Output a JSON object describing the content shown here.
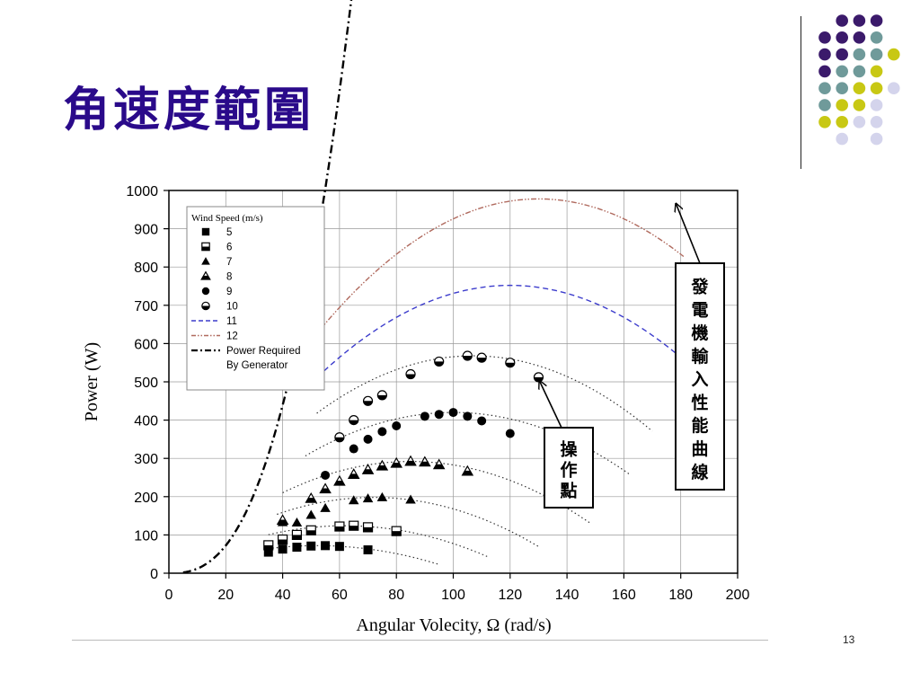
{
  "slide": {
    "title": "角速度範圍",
    "page_number": "13",
    "decor_colors": {
      "purple": "#3b1a6b",
      "teal": "#6f9a9a",
      "yellow": "#c8c814",
      "lavender": "#d4d4ec"
    }
  },
  "chart_data": {
    "type": "scatter",
    "xlabel": "Angular Volecity, Ω (rad/s)",
    "ylabel": "Power (W)",
    "xlim": [
      0,
      200
    ],
    "ylim": [
      0,
      1000
    ],
    "xticks": [
      0,
      20,
      40,
      60,
      80,
      100,
      120,
      140,
      160,
      180,
      200
    ],
    "yticks": [
      0,
      100,
      200,
      300,
      400,
      500,
      600,
      700,
      800,
      900,
      1000
    ],
    "grid": true,
    "legend_title": "Wind Speed (m/s)",
    "legend_position": "top-left",
    "series": [
      {
        "name": "5",
        "marker": "square-filled",
        "points": [
          [
            35,
            55
          ],
          [
            40,
            63
          ],
          [
            45,
            68
          ],
          [
            50,
            71
          ],
          [
            55,
            72
          ],
          [
            60,
            70
          ],
          [
            70,
            61
          ]
        ],
        "fit": {
          "peak_x": 52,
          "peak_y": 72,
          "x_start": 35,
          "x_end": 95
        }
      },
      {
        "name": "6",
        "marker": "square-half",
        "points": [
          [
            35,
            73
          ],
          [
            40,
            88
          ],
          [
            45,
            100
          ],
          [
            50,
            112
          ],
          [
            60,
            122
          ],
          [
            65,
            124
          ],
          [
            70,
            120
          ],
          [
            80,
            110
          ]
        ],
        "fit": {
          "peak_x": 62,
          "peak_y": 124,
          "x_start": 35,
          "x_end": 112
        }
      },
      {
        "name": "7",
        "marker": "triangle-filled",
        "points": [
          [
            40,
            133
          ],
          [
            45,
            132
          ],
          [
            50,
            152
          ],
          [
            55,
            170
          ],
          [
            65,
            190
          ],
          [
            70,
            195
          ],
          [
            75,
            198
          ],
          [
            85,
            192
          ]
        ],
        "fit": {
          "peak_x": 72,
          "peak_y": 198,
          "x_start": 38,
          "x_end": 130
        }
      },
      {
        "name": "8",
        "marker": "triangle-half",
        "points": [
          [
            40,
            138
          ],
          [
            50,
            195
          ],
          [
            55,
            220
          ],
          [
            60,
            240
          ],
          [
            65,
            258
          ],
          [
            70,
            270
          ],
          [
            75,
            280
          ],
          [
            80,
            287
          ],
          [
            85,
            292
          ],
          [
            90,
            290
          ],
          [
            95,
            283
          ],
          [
            105,
            266
          ]
        ],
        "fit": {
          "peak_x": 85,
          "peak_y": 292,
          "x_start": 40,
          "x_end": 148
        }
      },
      {
        "name": "9",
        "marker": "circle-filled",
        "points": [
          [
            55,
            256
          ],
          [
            65,
            325
          ],
          [
            70,
            350
          ],
          [
            75,
            370
          ],
          [
            80,
            385
          ],
          [
            90,
            410
          ],
          [
            95,
            415
          ],
          [
            100,
            420
          ],
          [
            105,
            410
          ],
          [
            110,
            398
          ],
          [
            120,
            365
          ]
        ],
        "fit": {
          "peak_x": 100,
          "peak_y": 420,
          "x_start": 48,
          "x_end": 162
        }
      },
      {
        "name": "10",
        "marker": "circle-half",
        "points": [
          [
            60,
            355
          ],
          [
            65,
            400
          ],
          [
            70,
            450
          ],
          [
            75,
            465
          ],
          [
            85,
            520
          ],
          [
            95,
            553
          ],
          [
            105,
            568
          ],
          [
            110,
            563
          ],
          [
            120,
            550
          ],
          [
            130,
            512
          ]
        ],
        "fit": {
          "peak_x": 107,
          "peak_y": 568,
          "x_start": 52,
          "x_end": 170
        }
      },
      {
        "name": "11",
        "line": "dashed",
        "color": "#3c3ccc",
        "fit": {
          "peak_x": 120,
          "peak_y": 752,
          "x_start": 50,
          "x_end": 178
        }
      },
      {
        "name": "12",
        "line": "dash-dot-dot",
        "color": "#b06a5e",
        "fit": {
          "peak_x": 130,
          "peak_y": 978,
          "x_start": 50,
          "x_end": 181
        }
      },
      {
        "name": "Power Required By Generator",
        "line": "dash-dot",
        "color": "#000000",
        "coef_a": 0.03,
        "exponent": 2.6,
        "x_start": 5,
        "x_end": 180
      }
    ],
    "annotations": [
      {
        "text": "發電機輸入性能曲線",
        "arrow_to": [
          178,
          975
        ]
      },
      {
        "text": "操作點",
        "arrow_to": [
          130,
          512
        ]
      }
    ]
  }
}
